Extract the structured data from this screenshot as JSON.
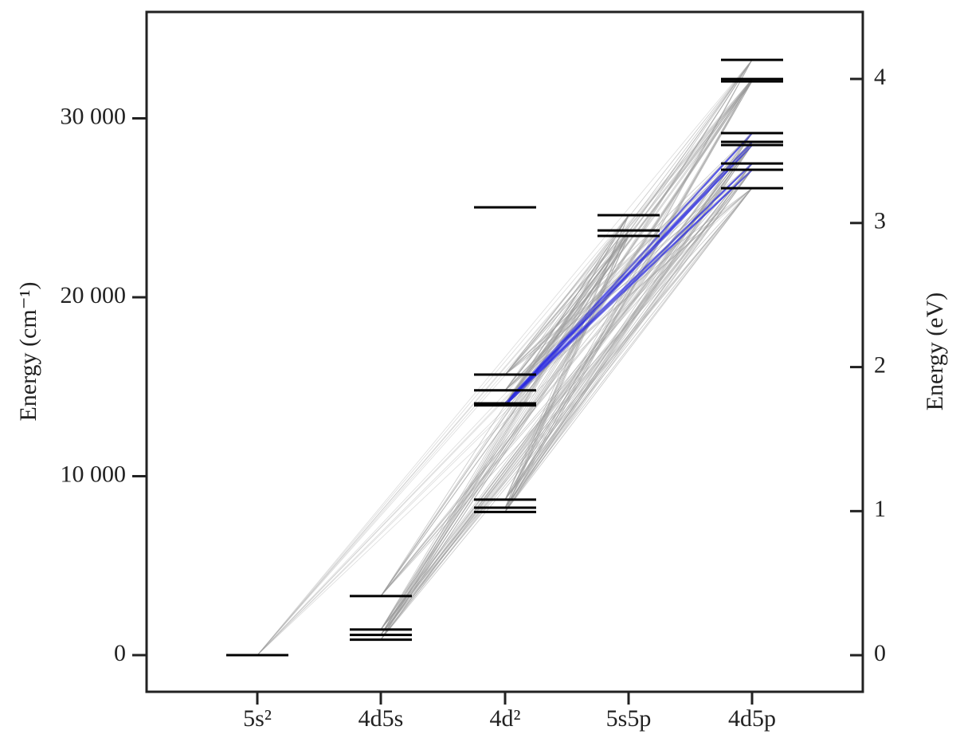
{
  "chart_data": {
    "type": "levels",
    "ylabel": "Energy  (cm⁻¹)",
    "y2label": "Energy (eV)",
    "categories": [
      "5s²",
      "4d5s",
      "4d²",
      "5s5p",
      "4d5p"
    ],
    "values": [
      [
        0
      ],
      [
        860,
        1130,
        1430,
        3300
      ],
      [
        8000,
        8240,
        8690,
        13960,
        14070,
        14800,
        15680,
        25030
      ],
      [
        23430,
        23740,
        24590
      ],
      [
        26100,
        27130,
        27480,
        28510,
        28690,
        29180,
        32070,
        32200,
        33270
      ]
    ],
    "color": "#000000",
    "line_color": "#999999",
    "highlight_color": "#2a2ae0",
    "ylim": [
      -2050,
      35950
    ],
    "yticks": [
      0,
      {
        "value": 10000,
        "label": "10 000"
      },
      {
        "value": 20000,
        "label": "20 000"
      },
      {
        "value": 30000,
        "label": "30 000"
      }
    ],
    "y2lim": [
      -0.254,
      4.465
    ],
    "y2ticks": [
      0,
      1,
      2,
      3,
      4
    ]
  }
}
